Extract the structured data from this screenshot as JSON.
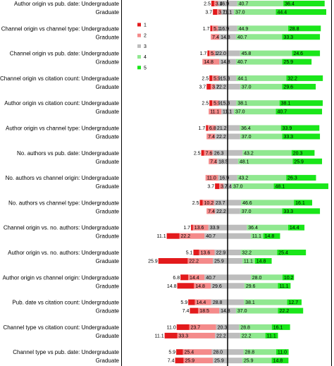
{
  "chart_data": {
    "type": "bar",
    "stacked": "diverging",
    "legend": {
      "placement": "left",
      "entries": [
        {
          "name": "1",
          "color": "#e31a1c"
        },
        {
          "name": "2",
          "color": "#f48a8a"
        },
        {
          "name": "3",
          "color": "#bdbdbd"
        },
        {
          "name": "4",
          "color": "#90e890"
        },
        {
          "name": "5",
          "color": "#19e619"
        }
      ]
    },
    "groups": [
      {
        "label": "Author origin vs pub. date: Undergraduate",
        "values": [
          2.5,
          3.4,
          16.9,
          40.7,
          36.4
        ],
        "shown": [
          "2.5",
          "3.4",
          "16.9",
          "40.7",
          "36.4"
        ]
      },
      {
        "label": "Graduate",
        "values": [
          3.7,
          3.7,
          11.1,
          37.0,
          44.4
        ],
        "shown": [
          "3.7",
          "3.7",
          "11.1",
          "37.0",
          "44.4"
        ]
      },
      {
        "label": "Channel origin vs channel type: Undergraduate",
        "values": [
          1.7,
          5.1,
          16.9,
          44.9,
          28.8
        ],
        "shown": [
          "1.7",
          "5.1",
          "16.9",
          "44.9",
          "28.8"
        ]
      },
      {
        "label": "Graduate",
        "values": [
          0,
          7.4,
          14.8,
          40.7,
          33.3
        ],
        "shown": [
          "",
          "7.4",
          "14.8",
          "40.7",
          "33.3"
        ]
      },
      {
        "label": "Channel origin vs pub. date: Undergraduate",
        "values": [
          1.7,
          5.1,
          22.0,
          45.8,
          24.6
        ],
        "shown": [
          "1.7",
          "5.1",
          "22.0",
          "45.8",
          "24.6"
        ]
      },
      {
        "label": "Graduate",
        "values": [
          0,
          14.8,
          14.8,
          40.7,
          25.9
        ],
        "shown": [
          "",
          "14.8",
          "14.8",
          "40.7",
          "25.9"
        ]
      },
      {
        "label": "Channel origin vs citation count: Undergraduate",
        "values": [
          2.5,
          5.9,
          15.3,
          44.1,
          32.2
        ],
        "shown": [
          "2.5",
          "5.9",
          "15.3",
          "44.1",
          "32.2"
        ]
      },
      {
        "label": "Graduate",
        "values": [
          3.7,
          3.7,
          22.2,
          37.0,
          29.6
        ],
        "shown": [
          "3.7",
          "3.7",
          "22.2",
          "37.0",
          "29.6"
        ]
      },
      {
        "label": "Author origin vs citation count: Undergraduate",
        "values": [
          2.5,
          5.9,
          15.3,
          38.1,
          38.1
        ],
        "shown": [
          "2.5",
          "5.9",
          "15.3",
          "38.1",
          "38.1"
        ]
      },
      {
        "label": "Graduate",
        "values": [
          0,
          11.1,
          11.1,
          37.0,
          40.7
        ],
        "shown": [
          "",
          "11.1",
          "11.1",
          "37.0",
          "40.7"
        ]
      },
      {
        "label": "Author origin vs channel type: Undergraduate",
        "values": [
          1.7,
          6.8,
          21.2,
          36.4,
          33.9
        ],
        "shown": [
          "1.7",
          "6.8",
          "21.2",
          "36.4",
          "33.9"
        ]
      },
      {
        "label": "Graduate",
        "values": [
          0,
          7.4,
          22.2,
          37.0,
          33.3
        ],
        "shown": [
          "",
          "7.4",
          "22.2",
          "37.0",
          "33.3"
        ]
      },
      {
        "label": "No. authors vs pub. date: Undergraduate",
        "values": [
          2.5,
          7.6,
          26.3,
          43.2,
          20.3
        ],
        "shown": [
          "2.5",
          "7.6",
          "26.3",
          "43.2",
          "20.3"
        ]
      },
      {
        "label": "Graduate",
        "values": [
          0,
          7.4,
          18.5,
          48.1,
          25.9
        ],
        "shown": [
          "",
          "7.4",
          "18.5",
          "48.1",
          "25.9"
        ]
      },
      {
        "label": "No. authors vs channel origin: Undergraduate",
        "values": [
          0,
          11.0,
          16.9,
          43.2,
          26.3
        ],
        "shown": [
          "",
          "11.0",
          "16.9",
          "43.2",
          "26.3"
        ]
      },
      {
        "label": "Graduate",
        "values": [
          3.7,
          3.7,
          7.4,
          37.0,
          48.1
        ],
        "shown": [
          "3.7",
          "3.7",
          "7.4",
          "37.0",
          "48.1"
        ]
      },
      {
        "label": "No. authors vs channel type: Undergraduate",
        "values": [
          2.5,
          10.2,
          23.7,
          46.6,
          16.1
        ],
        "shown": [
          "2.5",
          "10.2",
          "23.7",
          "46.6",
          "16.1"
        ]
      },
      {
        "label": "Graduate",
        "values": [
          0,
          7.4,
          22.2,
          37.0,
          33.3
        ],
        "shown": [
          "",
          "7.4",
          "22.2",
          "37.0",
          "33.3"
        ]
      },
      {
        "label": "Channel origin vs. no. authors: Undergraduate",
        "values": [
          1.7,
          13.6,
          33.9,
          36.4,
          14.4
        ],
        "shown": [
          "1.7",
          "13.6",
          "33.9",
          "36.4",
          "14.4"
        ]
      },
      {
        "label": "Graduate",
        "values": [
          11.1,
          22.2,
          40.7,
          11.1,
          14.8
        ],
        "shown": [
          "11.1",
          "22.2",
          "40.7",
          "11.1",
          "14.8"
        ]
      },
      {
        "label": "Author origin vs. no. authors: Undergraduate",
        "values": [
          5.1,
          13.6,
          22.9,
          32.2,
          25.4
        ],
        "shown": [
          "5.1",
          "13.6",
          "22.9",
          "32.2",
          "25.4"
        ]
      },
      {
        "label": "Graduate",
        "values": [
          25.9,
          22.2,
          25.9,
          11.1,
          14.8
        ],
        "shown": [
          "25.9",
          "22.2",
          "25.9",
          "11.1",
          "14.8"
        ]
      },
      {
        "label": "Author origin vs channel origin: Undergraduate",
        "values": [
          6.8,
          14.4,
          40.7,
          28.0,
          10.2
        ],
        "shown": [
          "6.8",
          "14.4",
          "40.7",
          "28.0",
          "10.2"
        ]
      },
      {
        "label": "Graduate",
        "values": [
          14.8,
          14.8,
          29.6,
          29.6,
          11.1
        ],
        "shown": [
          "14.8",
          "14.8",
          "29.6",
          "29.6",
          "11.1"
        ]
      },
      {
        "label": "Pub. date vs citation count: Undergraduate",
        "values": [
          5.9,
          14.4,
          28.8,
          38.1,
          12.7
        ],
        "shown": [
          "5.9",
          "14.4",
          "28.8",
          "38.1",
          "12.7"
        ]
      },
      {
        "label": "Graduate",
        "values": [
          7.4,
          18.5,
          14.8,
          37.0,
          22.2
        ],
        "shown": [
          "7.4",
          "18.5",
          "14.8",
          "37.0",
          "22.2"
        ]
      },
      {
        "label": "Channel type vs citation count: Undergraduate",
        "values": [
          11.0,
          23.7,
          20.3,
          28.8,
          16.1
        ],
        "shown": [
          "11.0",
          "23.7",
          "20.3",
          "28.8",
          "16.1"
        ]
      },
      {
        "label": "Graduate",
        "values": [
          11.1,
          33.3,
          22.2,
          22.2,
          11.1
        ],
        "shown": [
          "11.1",
          "33.3",
          "22.2",
          "22.2",
          "11.1"
        ]
      },
      {
        "label": "Channel type vs pub. date: Undergraduate",
        "values": [
          5.9,
          25.4,
          28.0,
          28.8,
          11.0
        ],
        "shown": [
          "5.9",
          "25.4",
          "28.0",
          "28.8",
          "11.0"
        ]
      },
      {
        "label": "Graduate",
        "values": [
          7.4,
          25.9,
          25.9,
          25.9,
          14.8
        ],
        "shown": [
          "7.4",
          "25.9",
          "25.9",
          "25.9",
          "14.8"
        ]
      }
    ]
  }
}
